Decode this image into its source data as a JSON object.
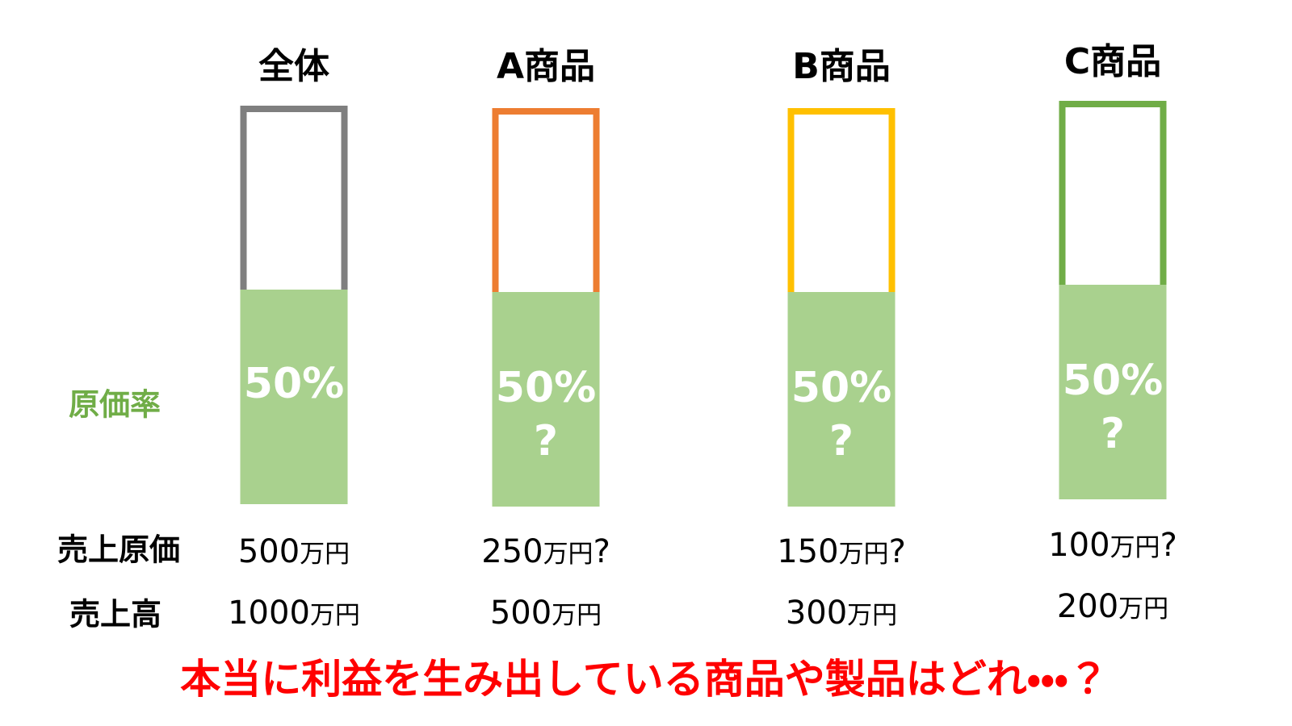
{
  "labels": {
    "rate_label": "原価率",
    "cost_label": "売上原価",
    "sales_label": "売上高"
  },
  "columns": [
    {
      "title": "全体",
      "color": "#7f7f7f",
      "rate": "50%",
      "cost": {
        "amount": "500",
        "unit": "万円"
      },
      "sales": {
        "amount": "1000",
        "unit": "万円"
      }
    },
    {
      "title": "A商品",
      "color": "#ed7d31",
      "rate": "50%",
      "rate_note": "?",
      "cost": {
        "amount": "250",
        "unit": "万円",
        "suffix": "?"
      },
      "sales": {
        "amount": "500",
        "unit": "万円"
      }
    },
    {
      "title": "B商品",
      "color": "#ffc000",
      "rate": "50%",
      "rate_note": "?",
      "cost": {
        "amount": "150",
        "unit": "万円",
        "suffix": "?"
      },
      "sales": {
        "amount": "300",
        "unit": "万円"
      }
    },
    {
      "title": "C商品",
      "color": "#70ad47",
      "rate": "50%",
      "rate_note": "?",
      "cost": {
        "amount": "100",
        "unit": "万円",
        "suffix": "?"
      },
      "sales": {
        "amount": "200",
        "unit": "万円"
      }
    }
  ],
  "footer": {
    "question": "本当に利益を生み出している商品や製品はどれ・・・？"
  }
}
